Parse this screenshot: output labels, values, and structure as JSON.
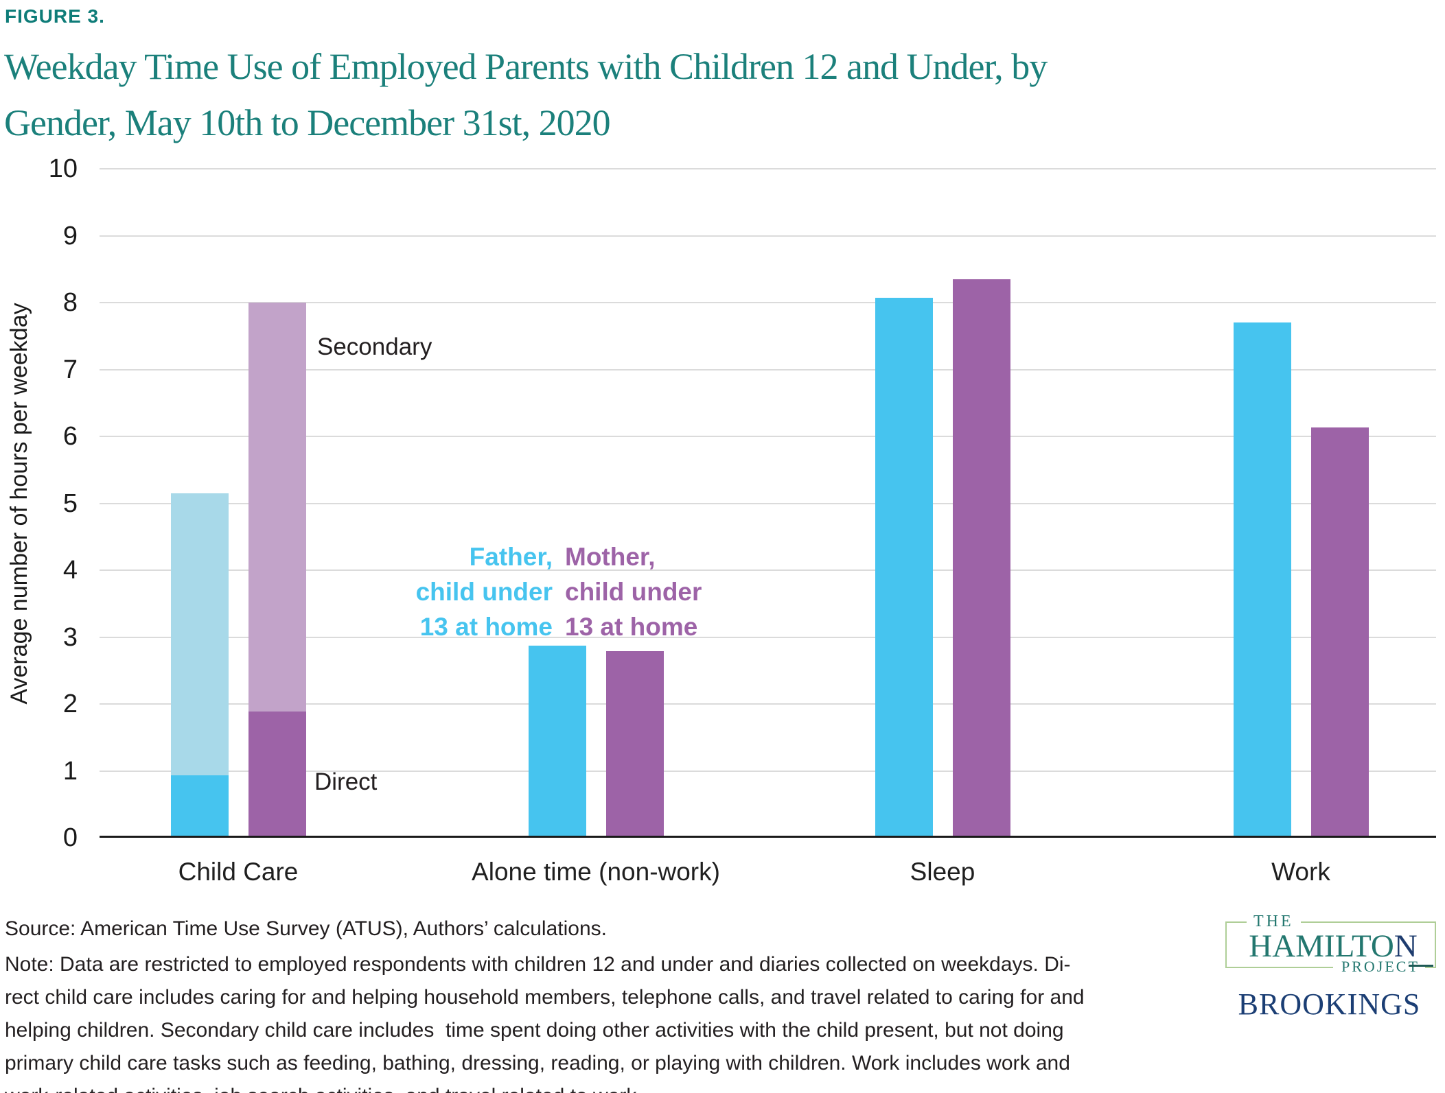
{
  "figure_label": "FIGURE 3.",
  "title": {
    "line1": "Weekday Time Use of Employed Parents with Children 12 and Under, by",
    "line2": "Gender, May 10th to December 31st, 2020"
  },
  "chart_data": {
    "type": "bar",
    "title": "Weekday Time Use of Employed Parents with Children 12 and Under, by Gender, May 10th to December 31st, 2020",
    "xlabel": "",
    "ylabel": "Average number of hours per weekday",
    "ylim": [
      0,
      10
    ],
    "yticks": [
      0,
      1,
      2,
      3,
      4,
      5,
      6,
      7,
      8,
      9,
      10
    ],
    "grid": "horizontal",
    "legend_position": "direct-labels-on-chart",
    "categories": [
      "Child Care",
      "Alone time (non-work)",
      "Sleep",
      "Work"
    ],
    "series": [
      {
        "name": "Father, child under 13 at home",
        "color": "#46C4EF",
        "values": [
          5.15,
          2.87,
          8.07,
          7.7
        ]
      },
      {
        "name": "Mother, child under 13 at home",
        "color": "#9D63A7",
        "values": [
          8.0,
          2.79,
          8.35,
          6.13
        ]
      }
    ],
    "child_care_breakdown": {
      "father": {
        "direct": 0.93,
        "secondary": 4.22
      },
      "mother": {
        "direct": 1.89,
        "secondary": 6.11
      }
    },
    "secondary_segment_colors": {
      "father": "#A8D9E9",
      "mother": "#C2A3C9"
    },
    "annotations": {
      "secondary_label": "Secondary",
      "direct_label": "Direct",
      "father_label_lines": [
        "Father,",
        "child under",
        "13 at home"
      ],
      "mother_label_lines": [
        "Mother,",
        "child under",
        "13 at home"
      ]
    }
  },
  "footer": {
    "source": "Source: American Time Use Survey (ATUS), Authors’ calculations.",
    "note": {
      "lines": [
        "Note: Data are restricted to employed respondents with children 12 and under and diaries collected on weekdays. Di-",
        "rect child care includes caring for and helping household members, telephone calls, and travel related to caring for and",
        "helping children. Secondary child care includes  time spent doing other activities with the child present, but not doing",
        "primary child care tasks such as feeding, bathing, dressing, reading, or playing with children. Work includes work and",
        "work-related activities, job search activities, and travel related to work."
      ]
    }
  },
  "logo": {
    "the": "THE",
    "hamilton_teal": "HAMILTO",
    "hamilton_navy": "N",
    "project": "PROJECT",
    "brookings": "BROOKINGS"
  },
  "colors": {
    "title_teal": "#1B807B",
    "figure_label_teal": "#0E7C78",
    "father_blue": "#46C4EF",
    "father_secondary_blue": "#A8D9E9",
    "mother_purple": "#9D63A7",
    "mother_secondary_purple": "#C2A3C9",
    "gridline_gray": "#DBDBDB",
    "axis_black": "#1A1A1A",
    "text_black": "#231F20",
    "logo_teal": "#23776F",
    "logo_navy": "#1B3E74",
    "logo_green_border": "#AFCE97"
  }
}
